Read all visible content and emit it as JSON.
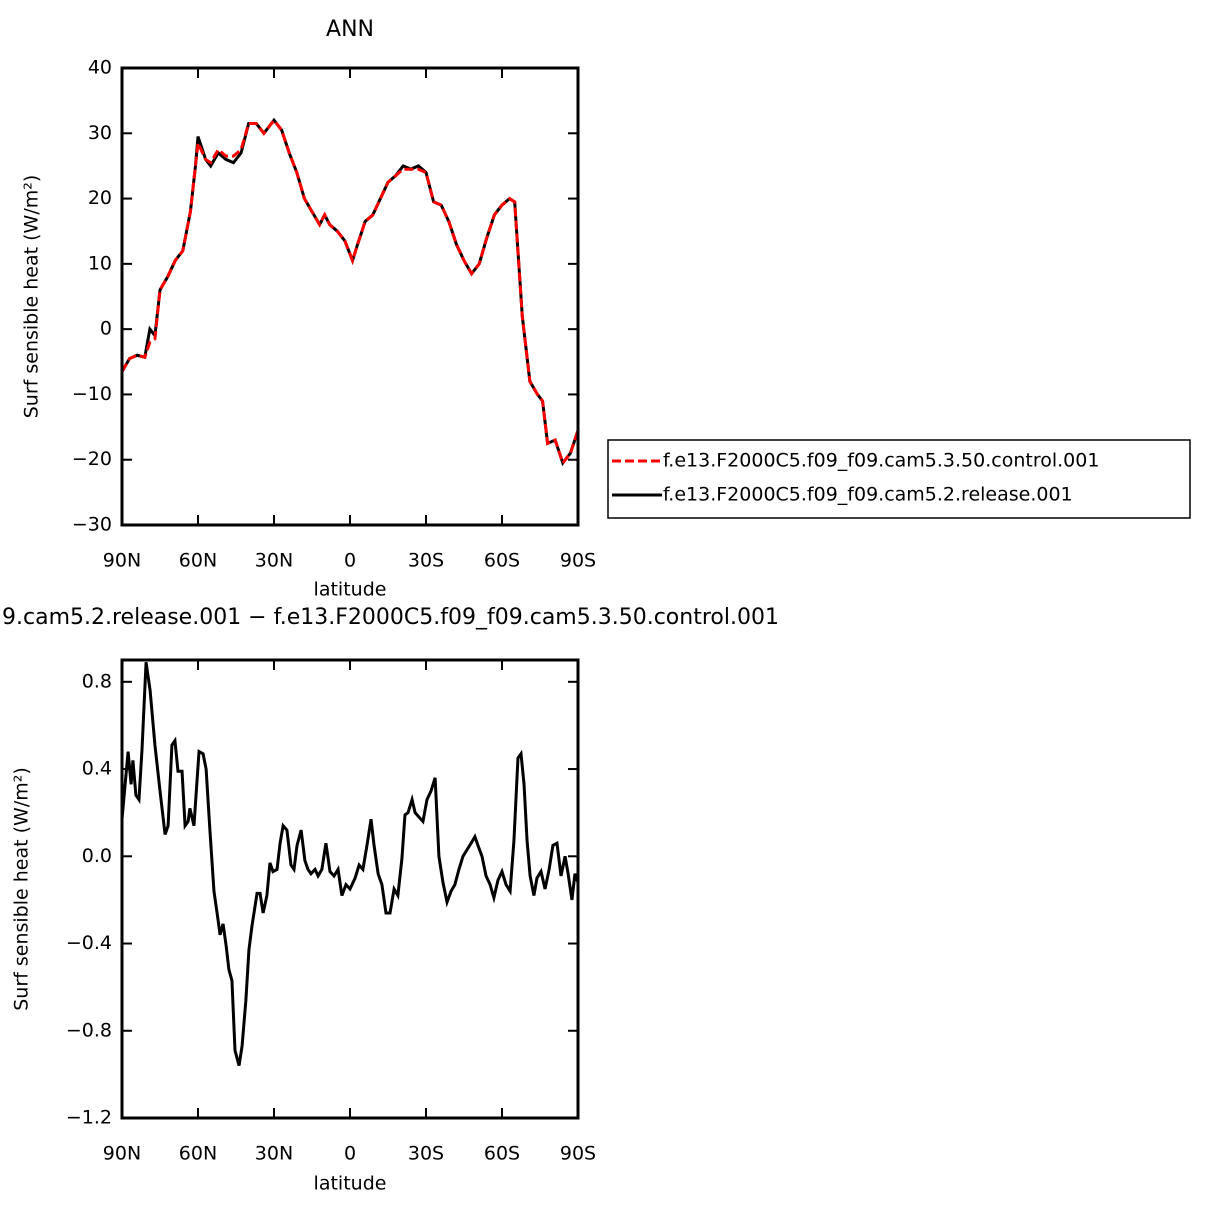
{
  "chart_data": [
    {
      "type": "line",
      "title": "ANN",
      "xlabel": "latitude",
      "ylabel": "Surf sensible heat (W/m²)",
      "xlim": [
        90,
        -90
      ],
      "xticks": [
        {
          "value": 90,
          "label": "90N"
        },
        {
          "value": 60,
          "label": "60N"
        },
        {
          "value": 30,
          "label": "30N"
        },
        0,
        {
          "value": -30,
          "label": "30S"
        },
        {
          "value": -60,
          "label": "60S"
        },
        {
          "value": -90,
          "label": "90S"
        }
      ],
      "ylim": [
        -30,
        40
      ],
      "yticks": [
        {
          "value": -30,
          "label": "−30"
        },
        {
          "value": -20,
          "label": "−20"
        },
        {
          "value": -10,
          "label": "−10"
        },
        0,
        10,
        20,
        30,
        40
      ],
      "legend": "outside-right",
      "x": [
        90,
        87,
        84,
        81,
        79,
        77,
        75,
        72,
        69,
        66,
        63,
        61,
        60,
        57,
        55,
        52,
        49,
        46,
        43,
        40,
        37,
        34,
        30,
        27,
        24,
        21,
        18,
        15,
        12,
        10,
        8,
        5,
        2,
        -1,
        -3,
        -6,
        -9,
        -12,
        -15,
        -18,
        -21,
        -24,
        -27,
        -30,
        -33,
        -36,
        -39,
        -42,
        -45,
        -48,
        -51,
        -54,
        -57,
        -60,
        -63,
        -65,
        -68,
        -71,
        -74,
        -76,
        -78,
        -81,
        -84,
        -87,
        -90
      ],
      "series": [
        {
          "name": "f.e13.F2000C5.f09_f09.cam5.3.50.control.001",
          "color": "#ff0000",
          "line_style": "dashed",
          "values": [
            -6.5,
            -4.5,
            -4,
            -4.3,
            -2,
            -1.5,
            6,
            8,
            10.5,
            12,
            18,
            25,
            28.5,
            26,
            25.5,
            27.5,
            26.5,
            26.5,
            27.5,
            31.5,
            31.5,
            30,
            32,
            30.5,
            27,
            24,
            20,
            18,
            16,
            17.5,
            16,
            15,
            13.5,
            10.5,
            13,
            16.5,
            17.5,
            20,
            22.5,
            23.5,
            24.5,
            24.5,
            24.5,
            24,
            19.5,
            19,
            16.5,
            13,
            10.5,
            8.5,
            10,
            14,
            17.5,
            19,
            20,
            19.5,
            2,
            -8,
            -10,
            -11,
            -17.5,
            -17,
            -20.5,
            -19,
            -15.5
          ]
        },
        {
          "name": "f.e13.F2000C5.f09_f09.cam5.2.release.001",
          "color": "#000000",
          "line_style": "solid",
          "values": [
            -6.5,
            -4.5,
            -4,
            -4.3,
            0,
            -1,
            6,
            8,
            10.5,
            12,
            18,
            25,
            29.5,
            26,
            25,
            27,
            26,
            25.5,
            27,
            31.5,
            31.5,
            30,
            32,
            30.5,
            27,
            24,
            20,
            18,
            16,
            17.5,
            16,
            15,
            13.5,
            10.5,
            13,
            16.5,
            17.5,
            20,
            22.5,
            23.5,
            25,
            24.5,
            25,
            24,
            19.5,
            19,
            16.5,
            13,
            10.5,
            8.5,
            10,
            14,
            17.5,
            19,
            20,
            19.5,
            2,
            -8,
            -10,
            -11,
            -17.5,
            -17,
            -20.5,
            -19,
            -15.5
          ]
        }
      ]
    },
    {
      "type": "line",
      "title": "9.cam5.2.release.001 − f.e13.F2000C5.f09_f09.cam5.3.50.control.001",
      "xlabel": "latitude",
      "ylabel": "Surf sensible heat (W/m²)",
      "xlim": [
        90,
        -90
      ],
      "xticks": [
        {
          "value": 90,
          "label": "90N"
        },
        {
          "value": 60,
          "label": "60N"
        },
        {
          "value": 30,
          "label": "30N"
        },
        0,
        {
          "value": -30,
          "label": "30S"
        },
        {
          "value": -60,
          "label": "60S"
        },
        {
          "value": -90,
          "label": "90S"
        }
      ],
      "ylim": [
        -1.2,
        0.9
      ],
      "yticks": [
        {
          "value": -1.2,
          "label": "−1.2"
        },
        {
          "value": -0.8,
          "label": "−0.8"
        },
        {
          "value": -0.4,
          "label": "−0.4"
        },
        {
          "value": 0,
          "label": "0.0"
        },
        0.4,
        0.8
      ],
      "color": "#000000",
      "x": [
        90,
        87.6,
        86.4,
        85.7,
        84.5,
        83.3,
        82.1,
        80.5,
        78.9,
        77,
        75,
        73,
        71.8,
        70.3,
        69.1,
        67.9,
        66.3,
        65.1,
        63.9,
        63.2,
        61.6,
        59.6,
        58,
        56.8,
        55.3,
        53.7,
        52.1,
        51.3,
        50.1,
        48.9,
        47.8,
        46.6,
        45.4,
        43.8,
        42.6,
        41.1,
        39.9,
        38.7,
        36.7,
        35.5,
        34.3,
        32.8,
        31.6,
        30.4,
        28.8,
        27.6,
        26.4,
        24.9,
        23.3,
        22.1,
        20.9,
        19.3,
        17.8,
        16.6,
        15.4,
        13.8,
        12.6,
        11.1,
        9.5,
        7.9,
        6.3,
        4.7,
        3.2,
        1.6,
        0,
        -2,
        -3.6,
        -5.1,
        -6.7,
        -8.3,
        -9.5,
        -11.1,
        -12.6,
        -14.2,
        -15.8,
        -17.4,
        -18.9,
        -20.5,
        -21.7,
        -22.9,
        -24.5,
        -25.7,
        -27.2,
        -28.8,
        -30.4,
        -32,
        -33.6,
        -35.1,
        -36.7,
        -38.3,
        -39.9,
        -41.4,
        -43,
        -44.6,
        -46.2,
        -47.8,
        -49.3,
        -50.5,
        -52.1,
        -53.7,
        -55.3,
        -56.8,
        -58.4,
        -60,
        -61.6,
        -63.2,
        -64.7,
        -66.3,
        -67.5,
        -68.7,
        -69.9,
        -71.1,
        -72.6,
        -73.8,
        -75.4,
        -77,
        -78.6,
        -80.1,
        -81.7,
        -83.3,
        -84.9,
        -86.1,
        -87.6,
        -88.8,
        -90
      ],
      "values": [
        0.17,
        0.48,
        0.33,
        0.44,
        0.28,
        0.26,
        0.49,
        0.89,
        0.76,
        0.51,
        0.3,
        0.1,
        0.14,
        0.51,
        0.53,
        0.39,
        0.39,
        0.14,
        0.16,
        0.22,
        0.14,
        0.48,
        0.47,
        0.4,
        0.12,
        -0.16,
        -0.29,
        -0.36,
        -0.31,
        -0.41,
        -0.52,
        -0.57,
        -0.89,
        -0.96,
        -0.87,
        -0.66,
        -0.43,
        -0.32,
        -0.17,
        -0.17,
        -0.26,
        -0.18,
        -0.03,
        -0.07,
        -0.06,
        0.06,
        0.14,
        0.12,
        -0.04,
        -0.06,
        0.05,
        0.12,
        -0.02,
        -0.06,
        -0.08,
        -0.06,
        -0.09,
        -0.06,
        0.06,
        -0.07,
        -0.09,
        -0.06,
        -0.18,
        -0.13,
        -0.15,
        -0.1,
        -0.04,
        -0.06,
        0.05,
        0.17,
        0.05,
        -0.08,
        -0.13,
        -0.26,
        -0.26,
        -0.15,
        -0.18,
        -0.01,
        0.19,
        0.2,
        0.26,
        0.2,
        0.18,
        0.16,
        0.26,
        0.3,
        0.36,
        0,
        -0.12,
        -0.21,
        -0.16,
        -0.13,
        -0.06,
        0,
        0.03,
        0.06,
        0.09,
        0.05,
        0,
        -0.09,
        -0.13,
        -0.19,
        -0.11,
        -0.07,
        -0.13,
        -0.16,
        0.07,
        0.45,
        0.47,
        0.33,
        0.07,
        -0.09,
        -0.18,
        -0.1,
        -0.07,
        -0.15,
        -0.06,
        0.05,
        0.06,
        -0.09,
        0,
        -0.08,
        -0.2,
        -0.08,
        -0.12
      ]
    }
  ]
}
